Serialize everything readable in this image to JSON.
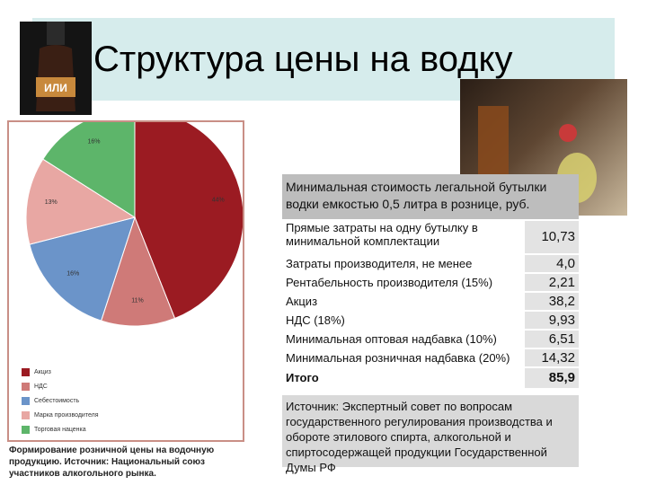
{
  "slide": {
    "title": "Структура цены на водку",
    "bottle_logo": "ИЛИ",
    "caption": "Формирование розничной цены на водочную продукцию. Источник: Национальный союз участников алкогольного рынка."
  },
  "chart_data": {
    "type": "pie",
    "slices": [
      {
        "name": "Акциз",
        "value": 44,
        "label": "44%",
        "color": "#9b1b22"
      },
      {
        "name": "НДС",
        "value": 11,
        "label": "11%",
        "color": "#cf7a78"
      },
      {
        "name": "Себестоимость",
        "value": 16,
        "label": "16%",
        "color": "#6b94c9"
      },
      {
        "name": "Марка производителя",
        "value": 13,
        "label": "13%",
        "color": "#e8a7a3"
      },
      {
        "name": "Торговая наценка",
        "value": 16,
        "label": "16%",
        "color": "#5db56a"
      }
    ],
    "legend_position": "bottom-left"
  },
  "table": {
    "header": "Минимальная стоимость легальной бутылки водки емкостью 0,5 литра в рознице, руб.",
    "rows": [
      {
        "label": "Прямые затраты на одну бутылку в минимальной комплектации",
        "value": "10,73"
      },
      {
        "label": "Затраты производителя, не менее",
        "value": "4,0"
      },
      {
        "label": "Рентабельность производителя (15%)",
        "value": "2,21"
      },
      {
        "label": "Акциз",
        "value": "38,2"
      },
      {
        "label": "НДС (18%)",
        "value": "9,93"
      },
      {
        "label": "Минимальная оптовая надбавка (10%)",
        "value": "6,51"
      },
      {
        "label": "Минимальная розничная надбавка (20%)",
        "value": "14,32"
      },
      {
        "label": "Итого",
        "value": "85,9"
      }
    ],
    "source": "Источник: Экспертный совет по вопросам государственного регулирования производства и обороте этилового спирта, алкогольной и спиртосодержащей продукции Государственной Думы РФ"
  }
}
